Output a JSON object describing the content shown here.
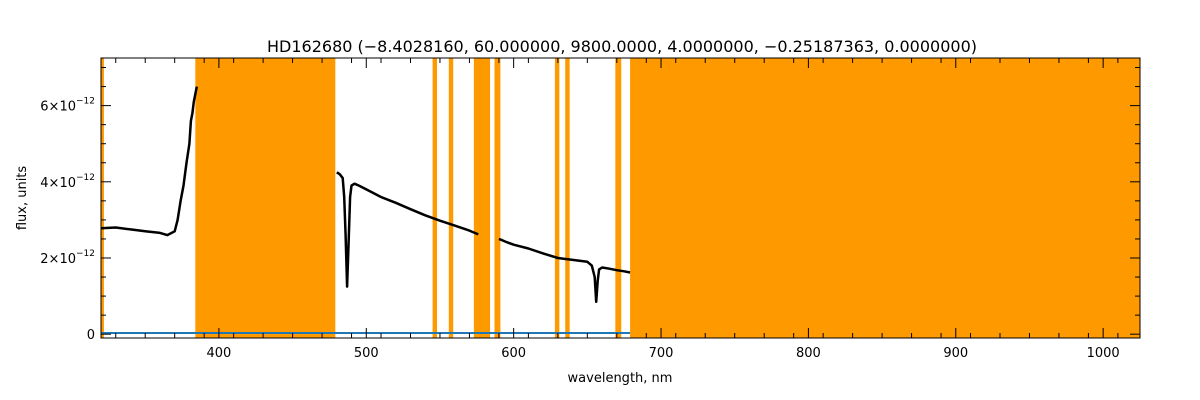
{
  "chart_data": {
    "type": "line",
    "title": "HD162680   (−8.4028160, 60.000000, 9800.0000, 4.0000000, −0.25187363, 0.0000000)",
    "xlabel": "wavelength, nm",
    "ylabel": "flux, units",
    "xlim": [
      320,
      1025
    ],
    "ylim": [
      -1e-13,
      7.25e-12
    ],
    "x_ticks": [
      {
        "value": 400,
        "label": "400"
      },
      {
        "value": 500,
        "label": "500"
      },
      {
        "value": 600,
        "label": "600"
      },
      {
        "value": 700,
        "label": "700"
      },
      {
        "value": 800,
        "label": "800"
      },
      {
        "value": 900,
        "label": "900"
      },
      {
        "value": 1000,
        "label": "1000"
      }
    ],
    "y_ticks": [
      {
        "value": 0,
        "base": "0",
        "exp": ""
      },
      {
        "value": 2e-12,
        "base": "2×10",
        "exp": "−12"
      },
      {
        "value": 4e-12,
        "base": "4×10",
        "exp": "−12"
      },
      {
        "value": 6e-12,
        "base": "6×10",
        "exp": "−12"
      }
    ],
    "masked_regions": [
      [
        320,
        322
      ],
      [
        384,
        479
      ],
      [
        545,
        548
      ],
      [
        556,
        559
      ],
      [
        573,
        584
      ],
      [
        587,
        591
      ],
      [
        628,
        631
      ],
      [
        635,
        638
      ],
      [
        669,
        673
      ],
      [
        679,
        1025
      ]
    ],
    "series": [
      {
        "color": "#000000",
        "x": [
          320,
          330,
          340,
          350,
          360,
          365,
          370,
          372,
          374,
          376,
          378,
          380,
          381,
          382,
          383,
          384,
          385,
          null,
          480,
          482,
          484,
          485,
          486,
          487,
          488,
          489,
          490,
          492,
          495,
          500,
          510,
          520,
          530,
          540,
          550,
          560,
          570,
          576,
          null,
          590,
          592,
          595,
          600,
          610,
          620,
          630,
          640,
          650,
          653,
          655,
          656,
          657,
          658,
          660,
          665,
          670,
          675,
          679
        ],
        "y": [
          2.78e-12,
          2.8e-12,
          2.75e-12,
          2.7e-12,
          2.66e-12,
          2.6e-12,
          2.7e-12,
          3e-12,
          3.5e-12,
          3.9e-12,
          4.5e-12,
          5e-12,
          5.6e-12,
          5.8e-12,
          6.1e-12,
          6.3e-12,
          6.5e-12,
          null,
          4.25e-12,
          4.2e-12,
          4.1e-12,
          3.6e-12,
          2.6e-12,
          1.25e-12,
          2.4e-12,
          3.6e-12,
          3.9e-12,
          3.95e-12,
          3.9e-12,
          3.8e-12,
          3.6e-12,
          3.45e-12,
          3.28e-12,
          3.12e-12,
          2.98e-12,
          2.85e-12,
          2.72e-12,
          2.62e-12,
          null,
          2.5e-12,
          2.47e-12,
          2.42e-12,
          2.35e-12,
          2.25e-12,
          2.12e-12,
          2e-12,
          1.95e-12,
          1.9e-12,
          1.8e-12,
          1.5e-12,
          8.5e-13,
          1.4e-12,
          1.7e-12,
          1.75e-12,
          1.72e-12,
          1.68e-12,
          1.65e-12,
          1.62e-12
        ]
      },
      {
        "color": "#1f77b4",
        "x": [
          320,
          380,
          480,
          679
        ],
        "y": [
          3e-14,
          3e-14,
          3e-14,
          3e-14
        ]
      }
    ],
    "mask_color": "#ff9900",
    "grid": false,
    "legend": "none"
  }
}
